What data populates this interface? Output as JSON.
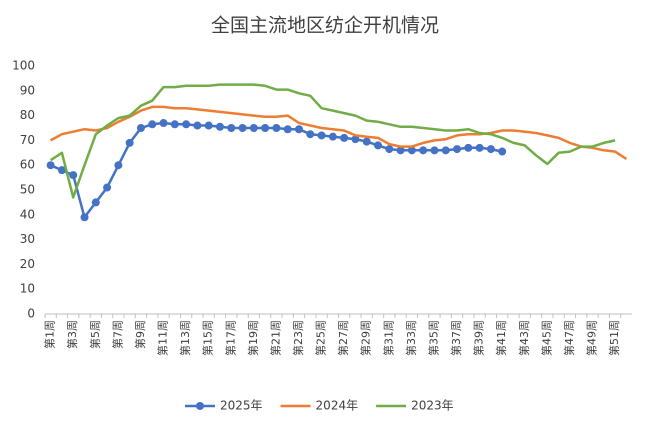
{
  "chart_data": {
    "type": "line",
    "title": "全国主流地区纺企开机情况",
    "categories": [
      "第1周",
      null,
      "第3周",
      null,
      "第5周",
      null,
      "第7周",
      null,
      "第9周",
      null,
      "第11周",
      null,
      "第13周",
      null,
      "第15周",
      null,
      "第17周",
      null,
      "第19周",
      null,
      "第21周",
      null,
      "第23周",
      null,
      "第25周",
      null,
      "第27周",
      null,
      "第29周",
      null,
      "第31周",
      null,
      "第33周",
      null,
      "第35周",
      null,
      "第37周",
      null,
      "第39周",
      null,
      "第41周",
      null,
      "第43周",
      null,
      "第45周",
      null,
      "第47周",
      null,
      "第49周",
      null,
      "第51周",
      null
    ],
    "series": [
      {
        "name": "2025年",
        "color": "#4472c4",
        "markers": true,
        "values": [
          60,
          58,
          56,
          39,
          45,
          51,
          60,
          69,
          75,
          76.5,
          77,
          76.5,
          76.5,
          76,
          76,
          75.5,
          75,
          75,
          75,
          75,
          75,
          74.5,
          74.5,
          72.5,
          72,
          71.5,
          71,
          70.5,
          69.5,
          68,
          66.5,
          66,
          66,
          66,
          66,
          66,
          66.5,
          67,
          67,
          66.5,
          65.5,
          null,
          null,
          null,
          null,
          null,
          null,
          null,
          null,
          null,
          null,
          null
        ]
      },
      {
        "name": "2024年",
        "color": "#ed7d31",
        "markers": false,
        "values": [
          70,
          72.5,
          73.5,
          74.5,
          74,
          75,
          77.5,
          79.5,
          82,
          83.5,
          83.5,
          83,
          83,
          82.5,
          82,
          81.5,
          81,
          80.5,
          80,
          79.5,
          79.5,
          80,
          77,
          76,
          75,
          74.5,
          74,
          72,
          71.5,
          71,
          68.5,
          67.5,
          67.5,
          69,
          70,
          70.5,
          72,
          72.5,
          72.5,
          73,
          74,
          74,
          73.5,
          73,
          72,
          71,
          69,
          67.5,
          67,
          66,
          65.5,
          62.5
        ]
      },
      {
        "name": "2023年",
        "color": "#70ad47",
        "markers": false,
        "values": [
          62,
          65,
          47,
          60,
          72.5,
          76,
          79,
          80,
          84,
          86,
          91.5,
          91.5,
          92,
          92,
          92,
          92.5,
          92.5,
          92.5,
          92.5,
          92,
          90.5,
          90.5,
          89,
          88,
          83,
          82,
          81,
          80,
          78,
          77.5,
          76.5,
          75.5,
          75.5,
          75,
          74.5,
          74,
          74,
          74.5,
          73,
          72.5,
          71,
          69,
          68,
          64,
          60.5,
          65,
          65.5,
          67.5,
          67.5,
          69,
          70,
          null
        ]
      }
    ],
    "ylim": [
      0,
      100
    ],
    "yticks": [
      0,
      10,
      20,
      30,
      40,
      50,
      60,
      70,
      80,
      90,
      100
    ],
    "grid": false
  }
}
